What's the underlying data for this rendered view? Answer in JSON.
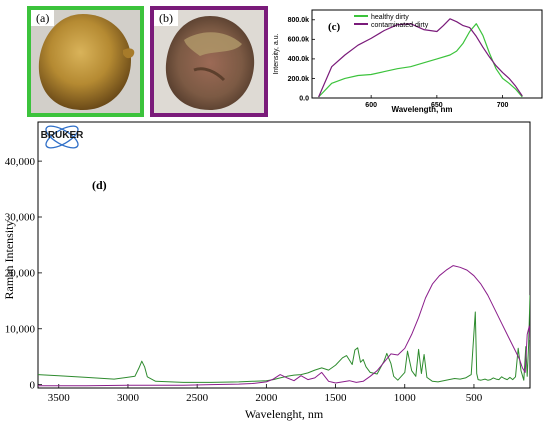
{
  "panels": {
    "a_label": "(a)",
    "b_label": "(b)",
    "c_label": "(c)",
    "d_label": "(d)"
  },
  "logo": {
    "text": "BRUKER"
  },
  "colors": {
    "healthy": "#3cc33c",
    "contaminated": "#7a1b7a",
    "main_green": "#2e8b2e",
    "main_purple": "#8b1e8b"
  },
  "chart_data": [
    {
      "type": "line",
      "title": "",
      "xlabel": "Wavelength, nm",
      "ylabel": "Intensity, a.u.",
      "xlim": [
        555,
        730
      ],
      "ylim": [
        0,
        900000
      ],
      "xticks": [
        "600",
        "650",
        "700"
      ],
      "xtick_values": [
        600,
        650,
        700
      ],
      "yticks": [
        "0.0",
        "200.0k",
        "400.0k",
        "600.0k",
        "800.0k"
      ],
      "ytick_values": [
        0,
        200000,
        400000,
        600000,
        800000
      ],
      "legend_position": "top-left",
      "series": [
        {
          "name": "healthy dirty",
          "color": "#3cc33c",
          "x": [
            560,
            570,
            580,
            590,
            600,
            610,
            620,
            630,
            640,
            650,
            660,
            665,
            670,
            675,
            680,
            685,
            690,
            695,
            700,
            705,
            710,
            715
          ],
          "y": [
            10000,
            150000,
            200000,
            230000,
            240000,
            270000,
            300000,
            320000,
            360000,
            400000,
            440000,
            480000,
            560000,
            680000,
            760000,
            640000,
            460000,
            300000,
            200000,
            150000,
            90000,
            10000
          ]
        },
        {
          "name": "contaminated dirty",
          "color": "#7a1b7a",
          "x": [
            560,
            570,
            580,
            590,
            600,
            610,
            620,
            630,
            640,
            650,
            655,
            660,
            665,
            670,
            675,
            680,
            685,
            690,
            695,
            700,
            705,
            710,
            715
          ],
          "y": [
            10000,
            320000,
            440000,
            540000,
            610000,
            690000,
            750000,
            760000,
            700000,
            680000,
            740000,
            810000,
            780000,
            740000,
            720000,
            630000,
            520000,
            420000,
            330000,
            260000,
            200000,
            120000,
            20000
          ]
        }
      ]
    },
    {
      "type": "line",
      "title": "",
      "xlabel": "Wavelenght, nm",
      "ylabel": "Raman Intensity",
      "xlim": [
        3650,
        95
      ],
      "ylim": [
        -600,
        47000
      ],
      "xticks": [
        "3500",
        "3000",
        "2500",
        "2000",
        "1500",
        "1000",
        "500"
      ],
      "xtick_values": [
        3500,
        3000,
        2500,
        2000,
        1500,
        1000,
        500
      ],
      "yticks": [
        "0",
        "10,000",
        "20,000",
        "30,000",
        "40,000"
      ],
      "ytick_values": [
        0,
        10000,
        20000,
        30000,
        40000
      ],
      "series": [
        {
          "name": "",
          "color": "#2e8b2e",
          "x": [
            3650,
            3500,
            3300,
            3100,
            2950,
            2920,
            2900,
            2880,
            2860,
            2800,
            2600,
            2400,
            2200,
            2100,
            2000,
            1950,
            1900,
            1850,
            1800,
            1750,
            1700,
            1650,
            1600,
            1550,
            1500,
            1450,
            1420,
            1380,
            1360,
            1340,
            1320,
            1300,
            1280,
            1250,
            1200,
            1150,
            1130,
            1100,
            1080,
            1050,
            1000,
            980,
            950,
            920,
            900,
            880,
            860,
            840,
            800,
            760,
            720,
            680,
            640,
            600,
            560,
            520,
            490,
            480,
            470,
            450,
            420,
            400,
            380,
            360,
            340,
            320,
            300,
            280,
            260,
            240,
            220,
            200,
            180,
            160,
            140,
            125,
            115,
            105,
            95
          ],
          "y": [
            1800,
            1600,
            1300,
            1000,
            1500,
            3000,
            4200,
            3200,
            1400,
            600,
            400,
            400,
            500,
            600,
            700,
            900,
            1200,
            1500,
            1700,
            1800,
            2100,
            2600,
            3000,
            2600,
            3500,
            4800,
            5200,
            3600,
            6200,
            6600,
            4000,
            4500,
            3200,
            2200,
            1900,
            4200,
            5600,
            3800,
            1500,
            800,
            2200,
            6000,
            2500,
            1500,
            6300,
            2000,
            5400,
            1300,
            600,
            500,
            700,
            900,
            1100,
            1000,
            1200,
            1800,
            13000,
            2000,
            900,
            800,
            1000,
            800,
            900,
            1200,
            1000,
            900,
            1400,
            1100,
            900,
            1300,
            900,
            1400,
            6500,
            2500,
            800,
            6800,
            1500,
            7000,
            16000
          ]
        },
        {
          "name": "",
          "color": "#8b1e8b",
          "x": [
            3650,
            3500,
            3300,
            3000,
            2800,
            2600,
            2400,
            2200,
            2100,
            2000,
            1950,
            1900,
            1850,
            1800,
            1750,
            1700,
            1650,
            1600,
            1550,
            1500,
            1450,
            1400,
            1350,
            1300,
            1250,
            1200,
            1150,
            1100,
            1050,
            1000,
            950,
            900,
            850,
            800,
            750,
            700,
            650,
            600,
            550,
            500,
            450,
            400,
            350,
            300,
            250,
            200,
            170,
            150,
            130,
            115,
            100,
            95
          ],
          "y": [
            -200,
            -200,
            -200,
            -100,
            -100,
            -100,
            0,
            100,
            200,
            500,
            1000,
            1800,
            1200,
            700,
            1600,
            900,
            1200,
            2200,
            600,
            300,
            500,
            700,
            400,
            600,
            1500,
            2500,
            4000,
            5500,
            5300,
            6500,
            9000,
            12000,
            15500,
            18000,
            19500,
            20500,
            21300,
            21000,
            20500,
            19500,
            18000,
            16000,
            13500,
            11000,
            8500,
            6000,
            4500,
            3000,
            2200,
            9000,
            10500,
            8000
          ]
        }
      ]
    }
  ]
}
